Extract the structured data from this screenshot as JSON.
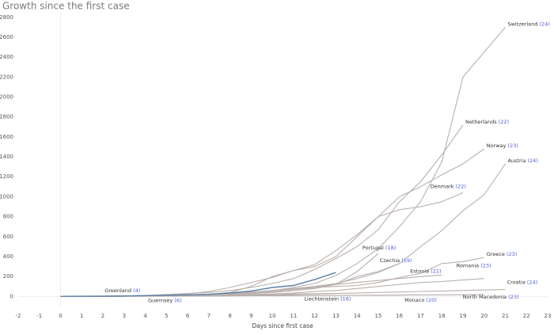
{
  "chart_data": {
    "type": "line",
    "title": "Growth since the first case",
    "x_label": "Days since first case",
    "xlim": [
      -2,
      23
    ],
    "xticks": [
      -2,
      -1,
      0,
      1,
      2,
      3,
      4,
      5,
      6,
      7,
      8,
      9,
      10,
      11,
      12,
      13,
      14,
      15,
      16,
      17,
      18,
      19,
      20,
      21,
      22,
      23
    ],
    "ylim": [
      -180,
      2850
    ],
    "yticks": [
      0,
      200,
      400,
      600,
      800,
      1000,
      1200,
      1400,
      1600,
      1800,
      2000,
      2200,
      2400,
      2600,
      2800
    ],
    "series": [
      {
        "name": "Switzerland",
        "tag": "(24)",
        "color": "#b9b0ad",
        "values": [
          1,
          1,
          1,
          2,
          3,
          5,
          10,
          15,
          25,
          40,
          60,
          90,
          130,
          210,
          330,
          480,
          700,
          950,
          1350,
          2200,
          2450,
          2700
        ]
      },
      {
        "name": "Netherlands",
        "tag": "(22)",
        "color": "#b9b0ad",
        "values": [
          1,
          1,
          2,
          5,
          10,
          20,
          30,
          40,
          60,
          90,
          130,
          180,
          270,
          380,
          500,
          670,
          950,
          1150,
          1420,
          1720
        ]
      },
      {
        "name": "Norway",
        "tag": "(23)",
        "color": "#b9b0ad",
        "values": [
          1,
          1,
          2,
          4,
          8,
          15,
          25,
          50,
          90,
          140,
          190,
          260,
          320,
          460,
          620,
          800,
          1000,
          1100,
          1220,
          1330,
          1480
        ]
      },
      {
        "name": "Austria",
        "tag": "(24)",
        "color": "#b9b0ad",
        "values": [
          1,
          2,
          3,
          5,
          5,
          5,
          10,
          15,
          20,
          30,
          50,
          70,
          100,
          130,
          180,
          240,
          330,
          500,
          660,
          860,
          1020,
          1330
        ]
      },
      {
        "name": "Denmark",
        "tag": "(22)",
        "color": "#b9b0ad",
        "values": [
          1,
          1,
          2,
          3,
          4,
          5,
          10,
          20,
          40,
          100,
          200,
          260,
          300,
          400,
          600,
          800,
          870,
          900,
          950,
          1040
        ]
      },
      {
        "name": "Portugal",
        "tag": "(18)",
        "color": "#b9b0ad",
        "values": [
          1,
          1,
          2,
          4,
          5,
          5,
          10,
          15,
          20,
          30,
          40,
          60,
          80,
          120,
          250,
          430
        ]
      },
      {
        "name": "Czechia",
        "tag": "(19)",
        "color": "#b9b0ad",
        "values": [
          1,
          1,
          2,
          3,
          5,
          5,
          10,
          15,
          20,
          30,
          40,
          60,
          90,
          120,
          200,
          250,
          330
        ]
      },
      {
        "name": "Greece",
        "tag": "(23)",
        "color": "#b9b0ad",
        "values": [
          1,
          1,
          2,
          3,
          5,
          7,
          10,
          20,
          30,
          45,
          60,
          80,
          90,
          100,
          110,
          140,
          190,
          230,
          330,
          350,
          390
        ]
      },
      {
        "name": "Estonia",
        "tag": "(22)",
        "color": "#b9b0ad",
        "values": [
          1,
          2,
          3,
          5,
          5,
          10,
          10,
          15,
          20,
          40,
          60,
          80,
          100,
          120,
          140,
          160,
          180,
          200,
          215
        ]
      },
      {
        "name": "Romania",
        "tag": "(23)",
        "color": "#b9b0ad",
        "values": [
          1,
          1,
          2,
          3,
          3,
          4,
          6,
          9,
          15,
          20,
          25,
          35,
          50,
          60,
          80,
          100,
          120,
          140,
          150,
          165,
          180
        ]
      },
      {
        "name": "Croatia",
        "tag": "(24)",
        "color": "#b9b0ad",
        "values": [
          1,
          1,
          2,
          3,
          5,
          7,
          10,
          12,
          13,
          14,
          15,
          20,
          25,
          30,
          35,
          40,
          45,
          50,
          55,
          60,
          65,
          70
        ]
      },
      {
        "name": "North Macedonia",
        "tag": "(23)",
        "color": "#b9b0ad",
        "values": [
          1,
          1,
          1,
          2,
          3,
          3,
          4,
          5,
          6,
          7,
          8,
          9,
          10,
          11,
          12,
          13,
          14,
          15,
          16,
          17,
          20
        ]
      },
      {
        "name": "Liechtenstein",
        "tag": "(16)",
        "color": "#b9b0ad",
        "values": [
          1,
          1,
          2,
          3,
          4,
          5,
          6,
          7,
          10,
          15,
          20,
          25,
          28,
          30
        ]
      },
      {
        "name": "Monaco",
        "tag": "(20)",
        "color": "#b9b0ad",
        "values": [
          1,
          1,
          1,
          2,
          2,
          3,
          4,
          5,
          6,
          7,
          7,
          8,
          9,
          10,
          11,
          12,
          14,
          17
        ]
      },
      {
        "name": "Greenland",
        "tag": "(4)",
        "color": "#b9b0ad",
        "values": [
          1,
          1,
          2,
          2
        ]
      },
      {
        "name": "Guernsey",
        "tag": "(6)",
        "color": "#b9b0ad",
        "values": [
          1,
          1,
          2,
          3,
          4,
          5
        ]
      },
      {
        "color": "#5b7fa6",
        "values": [
          1,
          2,
          3,
          5,
          8,
          12,
          16,
          22,
          35,
          55,
          90,
          110,
          170,
          240
        ]
      }
    ]
  }
}
